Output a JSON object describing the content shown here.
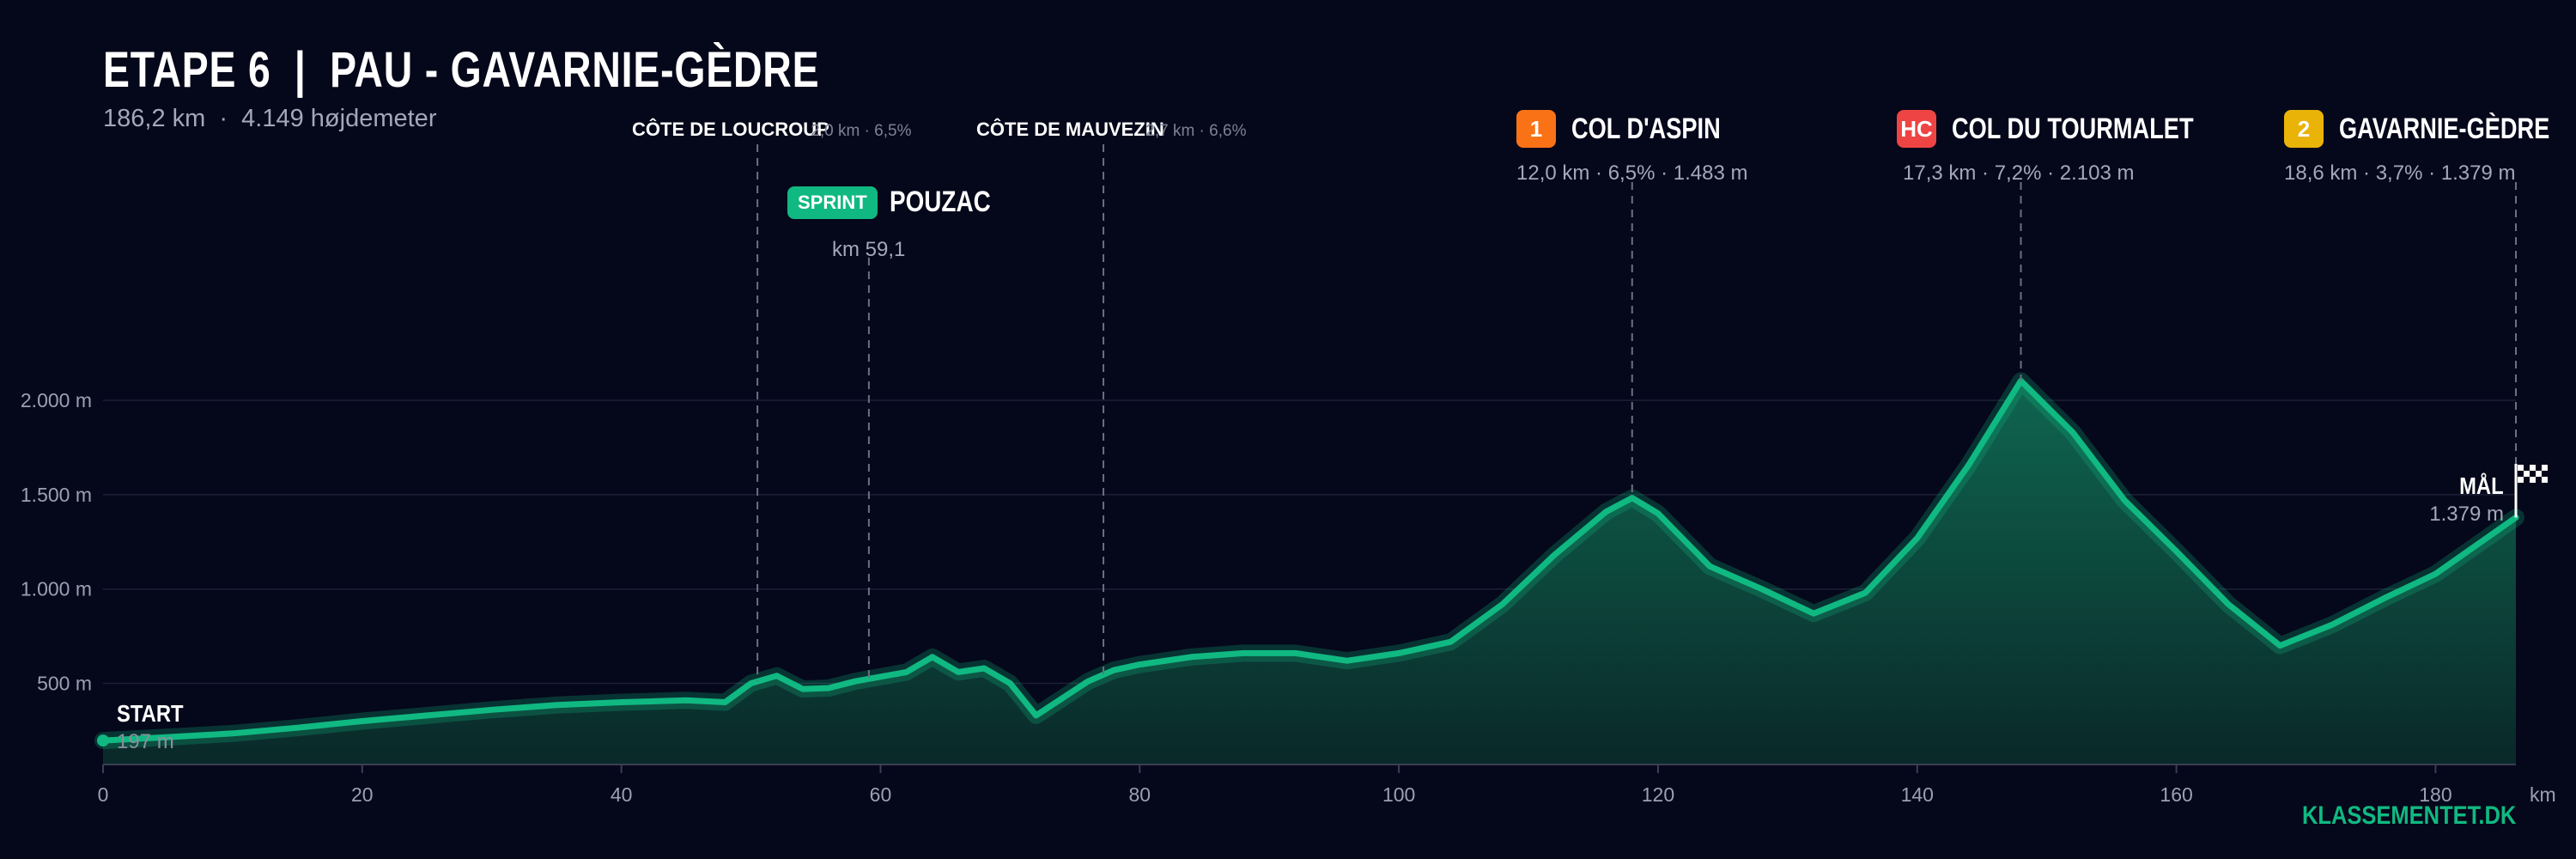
{
  "header": {
    "title": "ETAPE 6  |  PAU - GAVARNIE-GÈDRE",
    "subtitle": "186,2 km  ·  4.149 højdemeter"
  },
  "climbs": {
    "aspin": {
      "badge": "1",
      "badge_color": "#f97316",
      "name": "COL D'ASPIN",
      "stats": "12,0 km · 6,5% · 1.483 m"
    },
    "tourmalet": {
      "badge": "HC",
      "badge_color": "#ef4444",
      "name": "COL DU TOURMALET",
      "stats": "17,3 km · 7,2% · 2.103 m"
    },
    "gavarnie": {
      "badge": "2",
      "badge_color": "#eab308",
      "name": "GAVARNIE-GÈDRE",
      "stats": "18,6 km · 3,7% · 1.379 m"
    },
    "loucroup": {
      "name": "CÔTE DE LOUCROUP",
      "stats": "2,0 km · 6,5%"
    },
    "mauvezin": {
      "name": "CÔTE DE MAUVEZIN",
      "stats": "2,7 km · 6,6%"
    }
  },
  "sprint": {
    "badge": "SPRINT",
    "name": "POUZAC",
    "km": "km 59,1"
  },
  "start": {
    "label": "START",
    "elevation": "197 m"
  },
  "finish": {
    "label": "MÅL",
    "elevation": "1.379 m"
  },
  "brand": "KLASSEMENTET.DK",
  "colors": {
    "accent": "#10b981",
    "background": "#05071a"
  },
  "chart_data": {
    "type": "area",
    "xlabel": "km",
    "ylabel": "",
    "xlim": [
      0,
      186.2
    ],
    "ylim": [
      70,
      2150
    ],
    "x_ticks": [
      0,
      20,
      40,
      60,
      80,
      100,
      120,
      140,
      160,
      180
    ],
    "x_tick_labels": [
      "0",
      "20",
      "40",
      "60",
      "80",
      "100",
      "120",
      "140",
      "160",
      "180"
    ],
    "y_ticks": [
      500,
      1000,
      1500,
      2000
    ],
    "y_tick_labels": [
      "500 m",
      "1.000 m",
      "1.500 m",
      "2.000 m"
    ],
    "grid": true,
    "series": [
      {
        "x": [
          0,
          5,
          10,
          15,
          20,
          25,
          30,
          35,
          40,
          45,
          48,
          50,
          52,
          54,
          56,
          58,
          60,
          62,
          64,
          66,
          68,
          70,
          72,
          74,
          76,
          78,
          80,
          84,
          88,
          92,
          96,
          100,
          104,
          108,
          112,
          116,
          118,
          120,
          124,
          128,
          132,
          136,
          140,
          144,
          148,
          152,
          156,
          160,
          164,
          168,
          172,
          176,
          180,
          186.2
        ],
        "y": [
          197,
          215,
          235,
          265,
          300,
          330,
          360,
          385,
          400,
          410,
          400,
          500,
          540,
          470,
          475,
          510,
          535,
          560,
          640,
          560,
          580,
          500,
          330,
          420,
          510,
          570,
          600,
          640,
          660,
          660,
          620,
          660,
          720,
          920,
          1180,
          1410,
          1483,
          1400,
          1120,
          1000,
          870,
          980,
          1270,
          1660,
          2103,
          1830,
          1470,
          1200,
          920,
          700,
          810,
          950,
          1080,
          1379
        ]
      }
    ],
    "markers": [
      {
        "name": "CÔTE DE LOUCROUP",
        "km": 50.5
      },
      {
        "name": "POUZAC",
        "km": 59.1
      },
      {
        "name": "CÔTE DE MAUVEZIN",
        "km": 77.2
      },
      {
        "name": "COL D'ASPIN",
        "km": 118
      },
      {
        "name": "COL DU TOURMALET",
        "km": 148
      },
      {
        "name": "GAVARNIE-GÈDRE",
        "km": 186.2
      }
    ]
  }
}
